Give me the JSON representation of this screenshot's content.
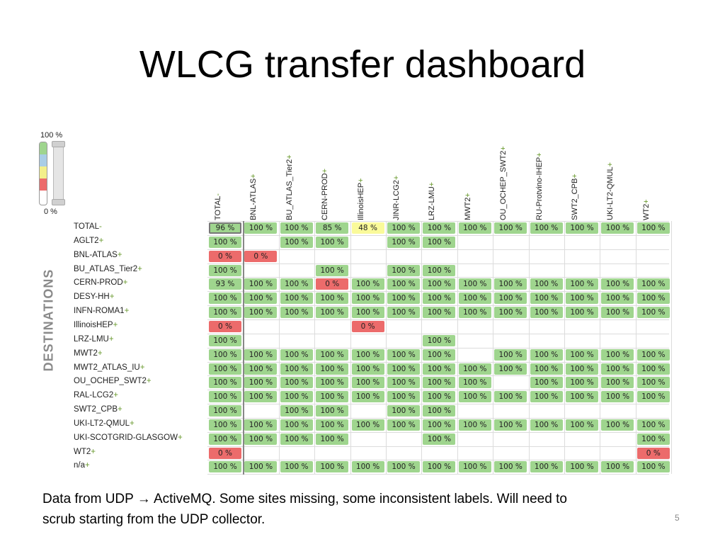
{
  "slide": {
    "title": "WLCG transfer dashboard",
    "caption_line1": "Data from UDP → ActiveMQ.  Some sites missing, some inconsistent labels.  Will need to",
    "caption_line2": "scrub starting from the UDP collector.",
    "page_number": "5"
  },
  "legend": {
    "top_label": "100 %",
    "bottom_label": "0 %",
    "colors": [
      "#9fd58e",
      "#a9cde6",
      "#f3ef8a",
      "#ec6b6b",
      "#ffffff"
    ]
  },
  "axis": {
    "rows_label": "DESTINATIONS"
  },
  "colors": {
    "green": "#9fd58e",
    "red": "#ec6b6b",
    "yellow": "#fafa9a",
    "plus": "#6a9a2f"
  },
  "columns": [
    {
      "name": "TOTAL",
      "suffix": "-"
    },
    {
      "name": "BNL-ATLAS",
      "suffix": "+"
    },
    {
      "name": "BU_ATLAS_Tier2",
      "suffix": "+"
    },
    {
      "name": "CERN-PROD",
      "suffix": "+"
    },
    {
      "name": "IllinoisHEP",
      "suffix": "+"
    },
    {
      "name": "JINR-LCG2",
      "suffix": "+"
    },
    {
      "name": "LRZ-LMU",
      "suffix": "+"
    },
    {
      "name": "MWT2",
      "suffix": "+"
    },
    {
      "name": "OU_OCHEP_SWT2",
      "suffix": "+"
    },
    {
      "name": "RU-Protvino-IHEP",
      "suffix": "+"
    },
    {
      "name": "SWT2_CPB",
      "suffix": "+"
    },
    {
      "name": "UKI-LT2-QMUL",
      "suffix": "+"
    },
    {
      "name": "WT2",
      "suffix": "+"
    }
  ],
  "rows": [
    {
      "name": "TOTAL",
      "suffix": "-",
      "cells": [
        "96 %",
        "100 %",
        "100 %",
        "85 %",
        "48 %",
        "100 %",
        "100 %",
        "100 %",
        "100 %",
        "100 %",
        "100 %",
        "100 %",
        "100 %"
      ]
    },
    {
      "name": "AGLT2",
      "suffix": "+",
      "cells": [
        "100 %",
        "",
        "100 %",
        "100 %",
        "",
        "100 %",
        "100 %",
        "",
        "",
        "",
        "",
        "",
        ""
      ]
    },
    {
      "name": "BNL-ATLAS",
      "suffix": "+",
      "cells": [
        "0 %",
        "0 %",
        "",
        "",
        "",
        "",
        "",
        "",
        "",
        "",
        "",
        "",
        ""
      ]
    },
    {
      "name": "BU_ATLAS_Tier2",
      "suffix": "+",
      "cells": [
        "100 %",
        "",
        "",
        "100 %",
        "",
        "100 %",
        "100 %",
        "",
        "",
        "",
        "",
        "",
        ""
      ]
    },
    {
      "name": "CERN-PROD",
      "suffix": "+",
      "cells": [
        "93 %",
        "100 %",
        "100 %",
        "0 %",
        "100 %",
        "100 %",
        "100 %",
        "100 %",
        "100 %",
        "100 %",
        "100 %",
        "100 %",
        "100 %"
      ]
    },
    {
      "name": "DESY-HH",
      "suffix": "+",
      "cells": [
        "100 %",
        "100 %",
        "100 %",
        "100 %",
        "100 %",
        "100 %",
        "100 %",
        "100 %",
        "100 %",
        "100 %",
        "100 %",
        "100 %",
        "100 %"
      ]
    },
    {
      "name": "INFN-ROMA1",
      "suffix": "+",
      "cells": [
        "100 %",
        "100 %",
        "100 %",
        "100 %",
        "100 %",
        "100 %",
        "100 %",
        "100 %",
        "100 %",
        "100 %",
        "100 %",
        "100 %",
        "100 %"
      ]
    },
    {
      "name": "IllinoisHEP",
      "suffix": "+",
      "cells": [
        "0 %",
        "",
        "",
        "",
        "0 %",
        "",
        "",
        "",
        "",
        "",
        "",
        "",
        ""
      ]
    },
    {
      "name": "LRZ-LMU",
      "suffix": "+",
      "cells": [
        "100 %",
        "",
        "",
        "",
        "",
        "",
        "100 %",
        "",
        "",
        "",
        "",
        "",
        ""
      ]
    },
    {
      "name": "MWT2",
      "suffix": "+",
      "cells": [
        "100 %",
        "100 %",
        "100 %",
        "100 %",
        "100 %",
        "100 %",
        "100 %",
        "",
        "100 %",
        "100 %",
        "100 %",
        "100 %",
        "100 %"
      ]
    },
    {
      "name": "MWT2_ATLAS_IU",
      "suffix": "+",
      "cells": [
        "100 %",
        "100 %",
        "100 %",
        "100 %",
        "100 %",
        "100 %",
        "100 %",
        "100 %",
        "100 %",
        "100 %",
        "100 %",
        "100 %",
        "100 %"
      ]
    },
    {
      "name": "OU_OCHEP_SWT2",
      "suffix": "+",
      "cells": [
        "100 %",
        "100 %",
        "100 %",
        "100 %",
        "100 %",
        "100 %",
        "100 %",
        "100 %",
        "",
        "100 %",
        "100 %",
        "100 %",
        "100 %"
      ]
    },
    {
      "name": "RAL-LCG2",
      "suffix": "+",
      "cells": [
        "100 %",
        "100 %",
        "100 %",
        "100 %",
        "100 %",
        "100 %",
        "100 %",
        "100 %",
        "100 %",
        "100 %",
        "100 %",
        "100 %",
        "100 %"
      ]
    },
    {
      "name": "SWT2_CPB",
      "suffix": "+",
      "cells": [
        "100 %",
        "",
        "100 %",
        "100 %",
        "",
        "100 %",
        "100 %",
        "",
        "",
        "",
        "",
        "",
        ""
      ]
    },
    {
      "name": "UKI-LT2-QMUL",
      "suffix": "+",
      "cells": [
        "100 %",
        "100 %",
        "100 %",
        "100 %",
        "100 %",
        "100 %",
        "100 %",
        "100 %",
        "100 %",
        "100 %",
        "100 %",
        "100 %",
        "100 %"
      ]
    },
    {
      "name": "UKI-SCOTGRID-GLASGOW",
      "suffix": "+",
      "cells": [
        "100 %",
        "100 %",
        "100 %",
        "100 %",
        "",
        "",
        "100 %",
        "",
        "",
        "",
        "",
        "",
        "100 %"
      ]
    },
    {
      "name": "WT2",
      "suffix": "+",
      "cells": [
        "0 %",
        "",
        "",
        "",
        "",
        "",
        "",
        "",
        "",
        "",
        "",
        "",
        "0 %"
      ]
    },
    {
      "name": "n/a",
      "suffix": "+",
      "cells": [
        "100 %",
        "100 %",
        "100 %",
        "100 %",
        "100 %",
        "100 %",
        "100 %",
        "100 %",
        "100 %",
        "100 %",
        "100 %",
        "100 %",
        "100 %"
      ]
    }
  ]
}
